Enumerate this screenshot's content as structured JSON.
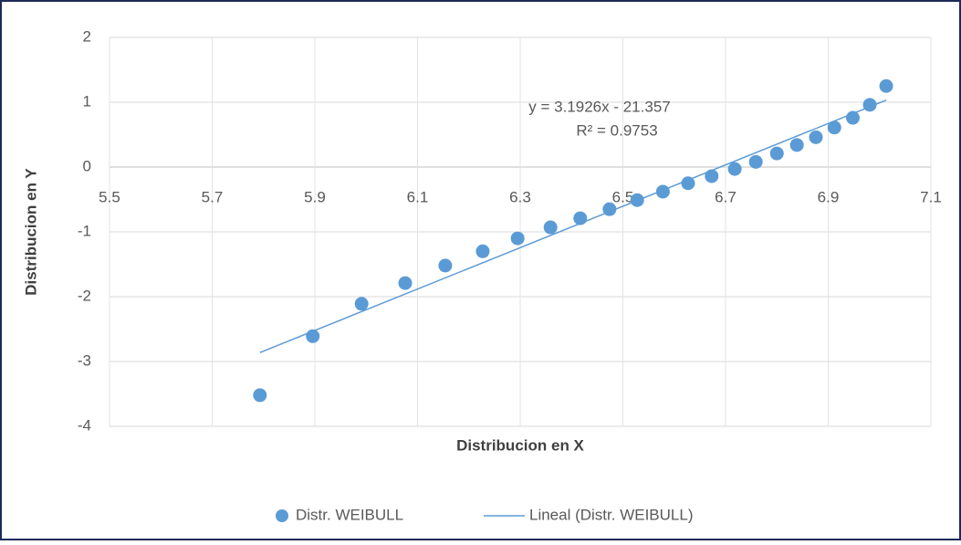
{
  "chart_data": {
    "type": "scatter",
    "x_label": "Distribucion en X",
    "y_label": "Distribucion en Y",
    "series": [
      {
        "name": "Distr. WEIBULL",
        "color": "#5b9bd5",
        "x": [
          5.793,
          5.896,
          5.991,
          6.076,
          6.154,
          6.227,
          6.295,
          6.359,
          6.417,
          6.474,
          6.528,
          6.578,
          6.627,
          6.673,
          6.718,
          6.759,
          6.8,
          6.839,
          6.876,
          6.912,
          6.948,
          6.981,
          7.013
        ],
        "values": [
          -3.52,
          -2.61,
          -2.11,
          -1.79,
          -1.52,
          -1.3,
          -1.1,
          -0.93,
          -0.79,
          -0.65,
          -0.51,
          -0.38,
          -0.25,
          -0.14,
          -0.03,
          0.08,
          0.21,
          0.34,
          0.46,
          0.61,
          0.76,
          0.96,
          1.25
        ]
      }
    ],
    "trendline": {
      "name": "Lineal (Distr. WEIBULL)",
      "color": "#5b9bd5",
      "slope": 3.1926,
      "intercept": -21.357,
      "equation": "y = 3.1926x - 21.357",
      "r2_label": "R² = 0.9753"
    },
    "xlim": [
      5.5,
      7.1
    ],
    "xticks": [
      5.5,
      5.7,
      5.9,
      6.1,
      6.3,
      6.5,
      6.7,
      6.9,
      7.1
    ],
    "ylim": [
      -4,
      2
    ],
    "yticks": [
      -4,
      -3,
      -2,
      -1,
      0,
      1,
      2
    ],
    "grid": true
  }
}
